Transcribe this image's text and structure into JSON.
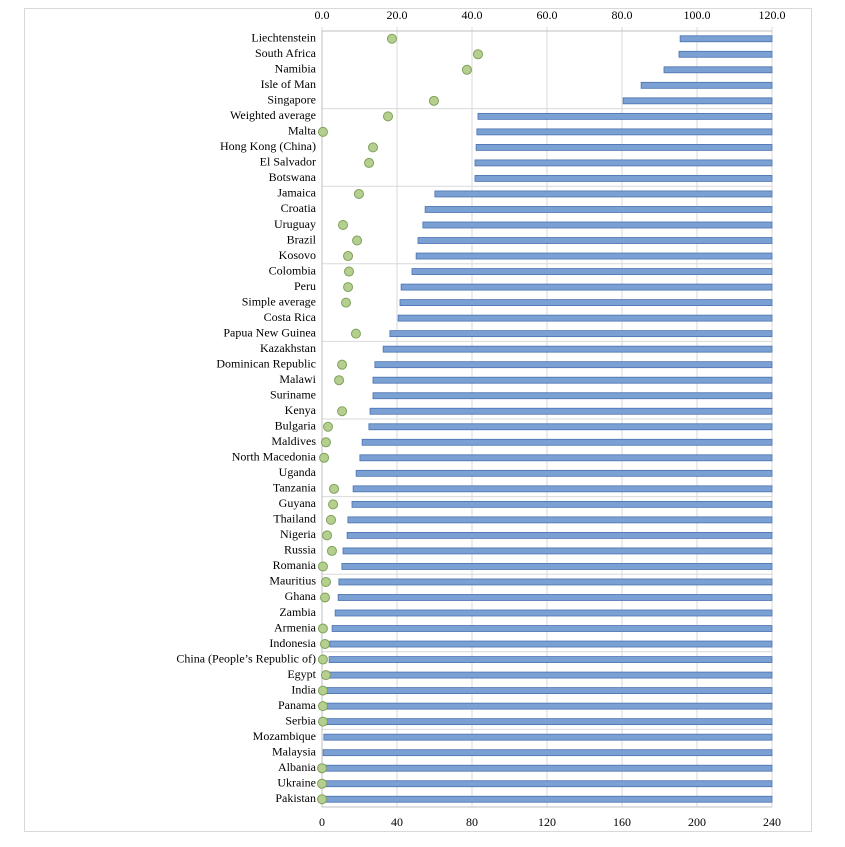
{
  "chart_data": {
    "type": "bar",
    "categories": [
      "Liechtenstein",
      "South Africa",
      "Namibia",
      "Isle of Man",
      "Singapore",
      "Weighted average",
      "Malta",
      "Hong Kong (China)",
      "El Salvador",
      "Botswana",
      "Jamaica",
      "Croatia",
      "Uruguay",
      "Brazil",
      "Kosovo",
      "Colombia",
      "Peru",
      "Simple average",
      "Costa Rica",
      "Papua New Guinea",
      "Kazakhstan",
      "Dominican Republic",
      "Malawi",
      "Suriname",
      "Kenya",
      "Bulgaria",
      "Maldives",
      "North Macedonia",
      "Uganda",
      "Tanzania",
      "Guyana",
      "Thailand",
      "Nigeria",
      "Russia",
      "Romania",
      "Mauritius",
      "Ghana",
      "Zambia",
      "Armenia",
      "Indonesia",
      "China (People’s Republic of)",
      "Egypt",
      "India",
      "Panama",
      "Serbia",
      "Mozambique",
      "Malaysia",
      "Albania",
      "Ukraine",
      "Pakistan"
    ],
    "series": [
      {
        "type": "bar",
        "axis": "x2",
        "color": "#7ba0d4",
        "values": [
          95.5,
          95.2,
          91.2,
          85.1,
          80.3,
          41.6,
          41.3,
          41.1,
          40.8,
          40.8,
          30.1,
          27.5,
          26.9,
          25.6,
          25.1,
          24.0,
          21.1,
          20.8,
          20.3,
          18.1,
          16.3,
          14.1,
          13.6,
          13.6,
          12.8,
          12.5,
          10.7,
          10.1,
          9.1,
          8.3,
          8.0,
          6.9,
          6.7,
          5.6,
          5.3,
          4.5,
          4.3,
          3.5,
          2.7,
          2.1,
          1.9,
          1.6,
          1.3,
          1.1,
          1.1,
          0.5,
          0.3,
          0.3,
          0.3,
          0.3
        ]
      },
      {
        "type": "scatter",
        "axis": "x",
        "color": "#b5cf8f",
        "values": [
          37.3,
          83.2,
          77.3,
          null,
          59.7,
          35.2,
          0.5,
          27.2,
          25.1,
          null,
          19.7,
          null,
          11.2,
          18.7,
          13.9,
          14.4,
          13.9,
          12.8,
          null,
          18.1,
          null,
          10.7,
          9.1,
          null,
          10.7,
          3.2,
          2.1,
          1.1,
          null,
          6.4,
          5.9,
          4.8,
          2.7,
          5.3,
          0.5,
          2.1,
          1.6,
          null,
          0.5,
          1.6,
          0.5,
          2.1,
          0.5,
          0.5,
          0.5,
          null,
          null,
          0,
          0,
          0
        ]
      }
    ],
    "xlim": [
      0,
      240
    ],
    "xticks": [
      0,
      40,
      80,
      120,
      160,
      200,
      240
    ],
    "x2lim": [
      0,
      120
    ],
    "x2ticks": [
      {
        "value": 0,
        "label": "0.0"
      },
      {
        "value": 20,
        "label": "20.0"
      },
      {
        "value": 40,
        "label": "40.0"
      },
      {
        "value": 60,
        "label": "60.0"
      },
      {
        "value": 80,
        "label": "80.0"
      },
      {
        "value": 100,
        "label": "100.0"
      },
      {
        "value": 120,
        "label": "120.0"
      }
    ],
    "grid": true
  }
}
